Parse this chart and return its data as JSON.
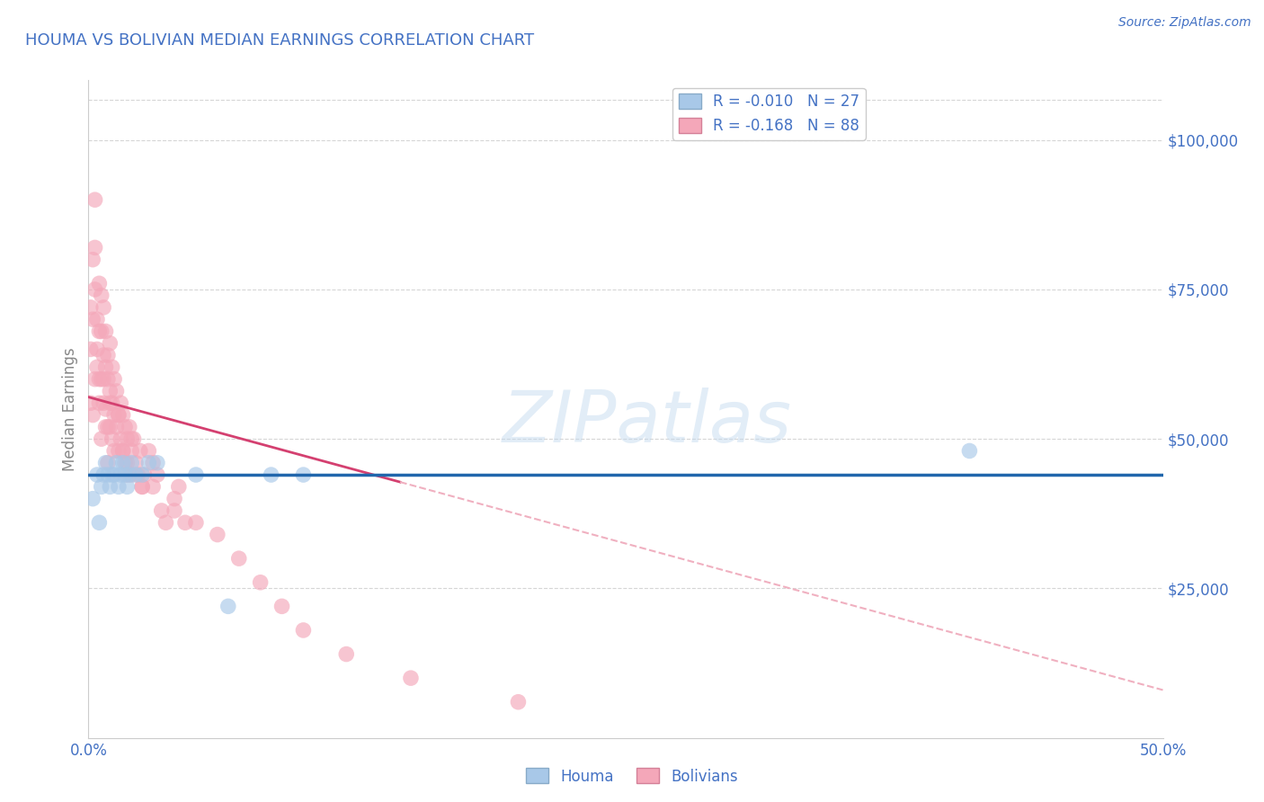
{
  "title": "HOUMA VS BOLIVIAN MEDIAN EARNINGS CORRELATION CHART",
  "source": "Source: ZipAtlas.com",
  "ylabel": "Median Earnings",
  "xlim": [
    0.0,
    0.5
  ],
  "ylim": [
    0,
    110000
  ],
  "yticks": [
    25000,
    50000,
    75000,
    100000
  ],
  "ytick_labels": [
    "$25,000",
    "$50,000",
    "$75,000",
    "$100,000"
  ],
  "xticks": [
    0.0,
    0.5
  ],
  "xtick_labels": [
    "0.0%",
    "50.0%"
  ],
  "legend_label_houma": "R = -0.010   N = 27",
  "legend_label_bolivian": "R = -0.168   N = 88",
  "houma_scatter_color": "#a8c8e8",
  "bolivian_scatter_color": "#f4a7b9",
  "trend_houma_color": "#2166ac",
  "trend_bolivian_solid_color": "#d44070",
  "trend_bolivian_dashed_color": "#f0b0c0",
  "background_color": "#ffffff",
  "grid_color": "#cccccc",
  "title_color": "#4472c4",
  "axis_label_color": "#888888",
  "watermark": "ZIPatlas",
  "houma_x": [
    0.002,
    0.004,
    0.005,
    0.006,
    0.007,
    0.008,
    0.009,
    0.01,
    0.011,
    0.012,
    0.013,
    0.014,
    0.015,
    0.016,
    0.017,
    0.018,
    0.019,
    0.02,
    0.022,
    0.025,
    0.028,
    0.032,
    0.05,
    0.065,
    0.085,
    0.1,
    0.41
  ],
  "houma_y": [
    40000,
    44000,
    36000,
    42000,
    44000,
    46000,
    44000,
    42000,
    44000,
    44000,
    46000,
    42000,
    44000,
    46000,
    44000,
    42000,
    44000,
    46000,
    44000,
    44000,
    46000,
    46000,
    44000,
    22000,
    44000,
    44000,
    48000
  ],
  "bolivian_x": [
    0.001,
    0.001,
    0.002,
    0.002,
    0.003,
    0.003,
    0.003,
    0.004,
    0.004,
    0.005,
    0.005,
    0.005,
    0.006,
    0.006,
    0.006,
    0.007,
    0.007,
    0.007,
    0.008,
    0.008,
    0.008,
    0.009,
    0.009,
    0.009,
    0.01,
    0.01,
    0.01,
    0.011,
    0.011,
    0.012,
    0.012,
    0.013,
    0.013,
    0.014,
    0.014,
    0.015,
    0.015,
    0.016,
    0.016,
    0.017,
    0.017,
    0.018,
    0.018,
    0.019,
    0.02,
    0.02,
    0.021,
    0.022,
    0.023,
    0.024,
    0.025,
    0.026,
    0.028,
    0.03,
    0.032,
    0.034,
    0.036,
    0.04,
    0.042,
    0.045,
    0.001,
    0.002,
    0.003,
    0.004,
    0.005,
    0.006,
    0.007,
    0.008,
    0.009,
    0.01,
    0.011,
    0.012,
    0.014,
    0.016,
    0.018,
    0.02,
    0.025,
    0.03,
    0.04,
    0.05,
    0.06,
    0.07,
    0.08,
    0.09,
    0.1,
    0.12,
    0.15,
    0.2
  ],
  "bolivian_y": [
    72000,
    65000,
    80000,
    70000,
    90000,
    82000,
    75000,
    70000,
    65000,
    76000,
    68000,
    60000,
    74000,
    68000,
    60000,
    72000,
    64000,
    56000,
    68000,
    62000,
    55000,
    64000,
    60000,
    52000,
    66000,
    58000,
    52000,
    62000,
    56000,
    60000,
    54000,
    58000,
    52000,
    54000,
    48000,
    56000,
    50000,
    54000,
    48000,
    52000,
    46000,
    50000,
    46000,
    52000,
    48000,
    44000,
    50000,
    46000,
    44000,
    48000,
    42000,
    44000,
    48000,
    42000,
    44000,
    38000,
    36000,
    40000,
    42000,
    36000,
    56000,
    54000,
    60000,
    62000,
    56000,
    50000,
    60000,
    52000,
    46000,
    56000,
    50000,
    48000,
    54000,
    48000,
    44000,
    50000,
    42000,
    46000,
    38000,
    36000,
    34000,
    30000,
    26000,
    22000,
    18000,
    14000,
    10000,
    6000
  ],
  "trend_boli_x0": 0.0,
  "trend_boli_y0": 57000,
  "trend_boli_x1": 0.5,
  "trend_boli_y1": 8000,
  "trend_boli_solid_end": 0.145,
  "trend_houma_y_flat": 44000
}
